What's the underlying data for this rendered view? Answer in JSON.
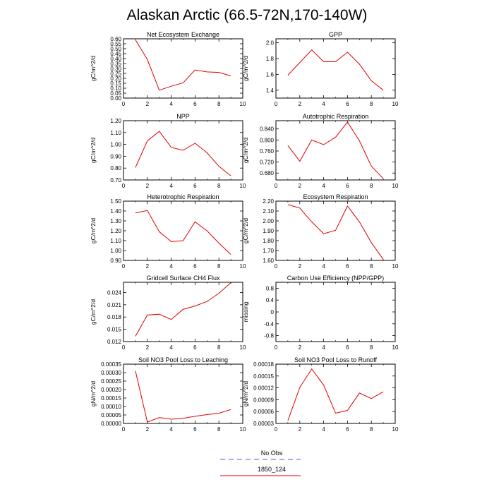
{
  "title": "Alaskan Arctic (66.5-72N,170-140W)",
  "legend": {
    "entries": [
      {
        "label": "No Obs",
        "color": "#8c8cf0",
        "dash": true
      },
      {
        "label": "1850_124",
        "color": "#e00000",
        "dash": false
      }
    ]
  },
  "chart_data": [
    {
      "type": "line",
      "title": "Net Ecosystem Exchange",
      "xlabel": "",
      "ylabel": "gC/m^2/d",
      "xlim": [
        0,
        10
      ],
      "xticks": [
        0,
        2,
        4,
        6,
        8,
        10
      ],
      "ylim": [
        0,
        0.6
      ],
      "yticks": [
        "0.00",
        "0.05",
        "0.10",
        "0.15",
        "0.20",
        "0.25",
        "0.30",
        "0.35",
        "0.40",
        "0.45",
        "0.50",
        "0.55",
        "0.60"
      ],
      "series": [
        {
          "x": [
            1,
            2,
            3,
            4,
            5,
            6,
            7,
            8,
            9
          ],
          "y": [
            0.59,
            0.39,
            0.08,
            0.12,
            0.155,
            0.285,
            0.265,
            0.26,
            0.225
          ]
        }
      ]
    },
    {
      "type": "line",
      "title": "GPP",
      "xlabel": "",
      "ylabel": "gC/m^2/d",
      "xlim": [
        0,
        10
      ],
      "xticks": [
        0,
        2,
        4,
        6,
        8,
        10
      ],
      "ylim": [
        1.3,
        2.05
      ],
      "yticks": [
        "1.4",
        "1.6",
        "1.8",
        "2.0"
      ],
      "series": [
        {
          "x": [
            1,
            2,
            3,
            4,
            5,
            6,
            7,
            8,
            9
          ],
          "y": [
            1.59,
            1.75,
            1.91,
            1.76,
            1.76,
            1.88,
            1.73,
            1.52,
            1.4
          ]
        }
      ]
    },
    {
      "type": "line",
      "title": "NPP",
      "xlabel": "",
      "ylabel": "gC/m^2/d",
      "xlim": [
        0,
        10
      ],
      "xticks": [
        0,
        2,
        4,
        6,
        8,
        10
      ],
      "ylim": [
        0.7,
        1.2
      ],
      "yticks": [
        "0.70",
        "0.80",
        "0.90",
        "1.00",
        "1.10",
        "1.20"
      ],
      "series": [
        {
          "x": [
            1,
            2,
            3,
            4,
            5,
            6,
            7,
            8,
            9
          ],
          "y": [
            0.805,
            1.03,
            1.11,
            0.975,
            0.95,
            1.01,
            0.93,
            0.815,
            0.735
          ]
        }
      ]
    },
    {
      "type": "line",
      "title": "Autotrophic Respiration",
      "xlabel": "",
      "ylabel": "gC/m^2/d",
      "xlim": [
        0,
        10
      ],
      "xticks": [
        0,
        2,
        4,
        6,
        8,
        10
      ],
      "ylim": [
        0.655,
        0.87
      ],
      "yticks": [
        "0.680",
        "0.720",
        "0.760",
        "0.800",
        "0.840"
      ],
      "series": [
        {
          "x": [
            1,
            2,
            3,
            4,
            5,
            6,
            7,
            8,
            9
          ],
          "y": [
            0.78,
            0.723,
            0.8,
            0.783,
            0.81,
            0.865,
            0.797,
            0.705,
            0.66
          ]
        }
      ]
    },
    {
      "type": "line",
      "title": "Heterotrophic Respiration",
      "xlabel": "",
      "ylabel": "gC/m^2/d",
      "xlim": [
        0,
        10
      ],
      "xticks": [
        0,
        2,
        4,
        6,
        8,
        10
      ],
      "ylim": [
        0.9,
        1.5
      ],
      "yticks": [
        "0.90",
        "1.00",
        "1.10",
        "1.20",
        "1.30",
        "1.40",
        "1.50"
      ],
      "series": [
        {
          "x": [
            1,
            2,
            3,
            4,
            5,
            6,
            7,
            8,
            9
          ],
          "y": [
            1.38,
            1.405,
            1.19,
            1.09,
            1.1,
            1.29,
            1.2,
            1.075,
            0.96
          ]
        }
      ]
    },
    {
      "type": "line",
      "title": "Ecosystem Respiration",
      "xlabel": "",
      "ylabel": "gC/m^2/d",
      "xlim": [
        0,
        10
      ],
      "xticks": [
        0,
        2,
        4,
        6,
        8,
        10
      ],
      "ylim": [
        1.6,
        2.2
      ],
      "yticks": [
        "1.60",
        "1.70",
        "1.80",
        "1.90",
        "2.00",
        "2.10",
        "2.20"
      ],
      "series": [
        {
          "x": [
            1,
            2,
            3,
            4,
            5,
            6,
            7,
            8,
            9
          ],
          "y": [
            2.165,
            2.13,
            1.99,
            1.87,
            1.905,
            2.15,
            1.99,
            1.78,
            1.61
          ]
        }
      ]
    },
    {
      "type": "line",
      "title": "Gridcell Surface CH4 Flux",
      "xlabel": "",
      "ylabel": "gC/m^2/d",
      "xlim": [
        0,
        10
      ],
      "xticks": [
        0,
        2,
        4,
        6,
        8,
        10
      ],
      "ylim": [
        0.012,
        0.0265
      ],
      "yticks": [
        "0.012",
        "0.015",
        "0.018",
        "0.021",
        "0.024"
      ],
      "series": [
        {
          "x": [
            1,
            2,
            3,
            4,
            5,
            6,
            7,
            8,
            9
          ],
          "y": [
            0.0133,
            0.0185,
            0.0187,
            0.0174,
            0.0199,
            0.0207,
            0.0218,
            0.0238,
            0.0264
          ]
        }
      ]
    },
    {
      "type": "line",
      "title": "Carbon Use Efficiency (NPP/GPP)",
      "xlabel": "",
      "ylabel": "missing",
      "xlim": [
        0,
        10
      ],
      "xticks": [
        0,
        2,
        4,
        6,
        8,
        10
      ],
      "ylim": [
        -1,
        1
      ],
      "yticks": [
        "-0.8",
        "-0.4",
        "0",
        "0.4",
        "0.8"
      ],
      "series": []
    },
    {
      "type": "line",
      "title": "Soil NO3 Pool Loss to Leaching",
      "xlabel": "",
      "ylabel": "gN/m^2/d",
      "xlim": [
        0,
        10
      ],
      "xticks": [
        0,
        2,
        4,
        6,
        8,
        10
      ],
      "ylim": [
        0,
        0.00035
      ],
      "yticks": [
        "0.00000",
        "0.00005",
        "0.00010",
        "0.00015",
        "0.00020",
        "0.00025",
        "0.00030",
        "0.00035"
      ],
      "series": [
        {
          "x": [
            1,
            2,
            3,
            4,
            5,
            6,
            7,
            8,
            9
          ],
          "y": [
            0.00031,
            8e-06,
            3.5e-05,
            2.5e-05,
            3e-05,
            4.2e-05,
            5.2e-05,
            6e-05,
            8.2e-05
          ]
        }
      ]
    },
    {
      "type": "line",
      "title": "Soil NO3 Pool Loss to Runoff",
      "xlabel": "",
      "ylabel": "gN/m^2/d",
      "xlim": [
        0,
        10
      ],
      "xticks": [
        0,
        2,
        4,
        6,
        8,
        10
      ],
      "ylim": [
        3e-05,
        0.00018
      ],
      "yticks": [
        "0.00003",
        "0.00006",
        "0.00009",
        "0.00012",
        "0.00015",
        "0.00018"
      ],
      "series": [
        {
          "x": [
            1,
            2,
            3,
            4,
            5,
            6,
            7,
            8,
            9
          ],
          "y": [
            3.7e-05,
            0.000121,
            0.000168,
            0.000127,
            5.6e-05,
            6.3e-05,
            0.000107,
            9.3e-05,
            0.00011
          ]
        }
      ]
    }
  ]
}
